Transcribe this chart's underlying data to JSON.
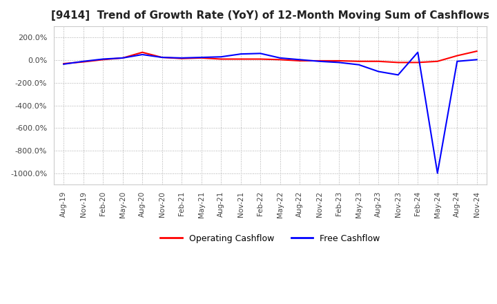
{
  "title": "[9414]  Trend of Growth Rate (YoY) of 12-Month Moving Sum of Cashflows",
  "title_fontsize": 11,
  "ylim": [
    -1100,
    300
  ],
  "yticks": [
    200,
    0,
    -200,
    -400,
    -600,
    -800,
    -1000
  ],
  "background_color": "#ffffff",
  "plot_bg_color": "#ffffff",
  "grid_color": "#aaaaaa",
  "legend_labels": [
    "Operating Cashflow",
    "Free Cashflow"
  ],
  "legend_colors": [
    "#ff0000",
    "#0000ff"
  ],
  "x_labels": [
    "Aug-19",
    "Nov-19",
    "Feb-20",
    "May-20",
    "Aug-20",
    "Nov-20",
    "Feb-21",
    "May-21",
    "Aug-21",
    "Nov-21",
    "Feb-22",
    "May-22",
    "Aug-22",
    "Nov-22",
    "Feb-23",
    "May-23",
    "Aug-23",
    "Nov-23",
    "Feb-24",
    "May-24",
    "Aug-24",
    "Nov-24"
  ],
  "operating_cf": [
    -30,
    -15,
    5,
    20,
    70,
    25,
    15,
    20,
    10,
    10,
    10,
    5,
    -5,
    -5,
    -5,
    -10,
    -10,
    -20,
    -20,
    -10,
    40,
    80
  ],
  "free_cf": [
    -35,
    -10,
    10,
    20,
    50,
    25,
    20,
    25,
    30,
    55,
    60,
    20,
    5,
    -10,
    -20,
    -40,
    -100,
    -130,
    70,
    -1000,
    -10,
    5
  ]
}
